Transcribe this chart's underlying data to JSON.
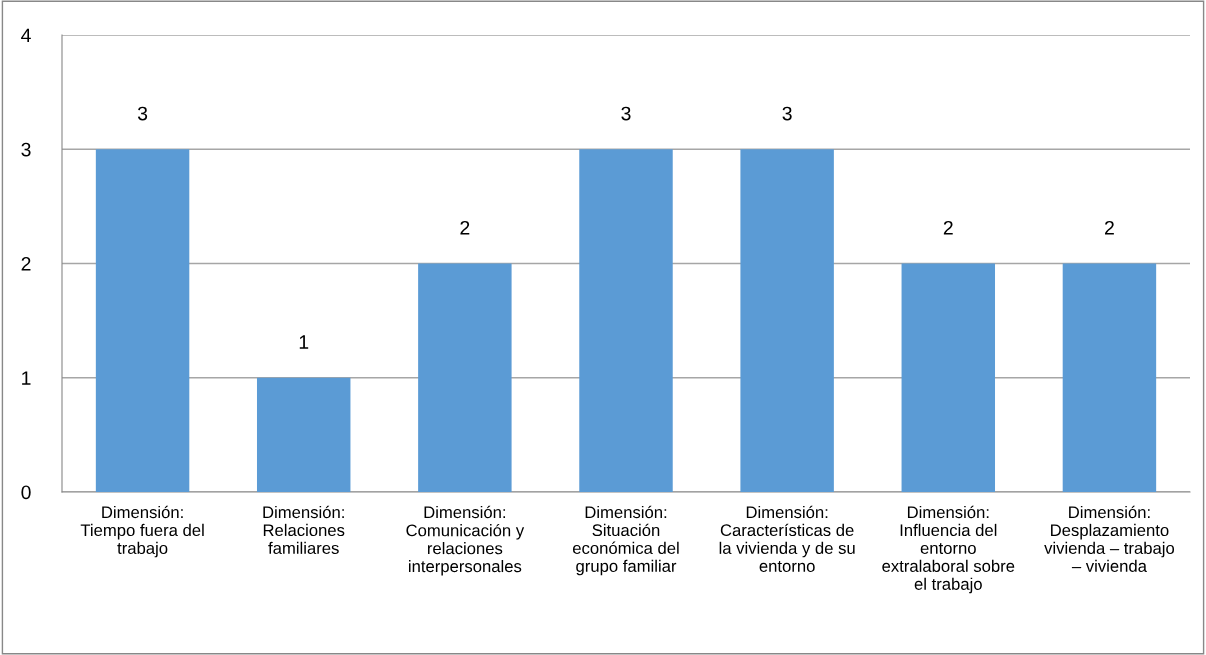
{
  "chart_data": {
    "type": "bar",
    "categories": [
      "Dimensión:\nTiempo fuera del\ntrabajo",
      "Dimensión:\nRelaciones\nfamiliares",
      "Dimensión:\nComunicación y\nrelaciones\ninterpersonales",
      "Dimensión:\nSituación\neconómica del\ngrupo familiar",
      "Dimensión:\nCaracterísticas de\nla vivienda y de su\nentorno",
      "Dimensión:\nInfluencia del\nentorno\nextralaboral sobre\nel trabajo",
      "Dimensión:\nDesplazamiento\nvivienda – trabajo\n– vivienda"
    ],
    "values": [
      3,
      1,
      2,
      3,
      3,
      2,
      2
    ],
    "color": "#5b9bd5",
    "ylim": [
      0,
      4
    ],
    "yticks": [
      0,
      1,
      2,
      3,
      4
    ],
    "grid": "y",
    "data_labels": true
  }
}
